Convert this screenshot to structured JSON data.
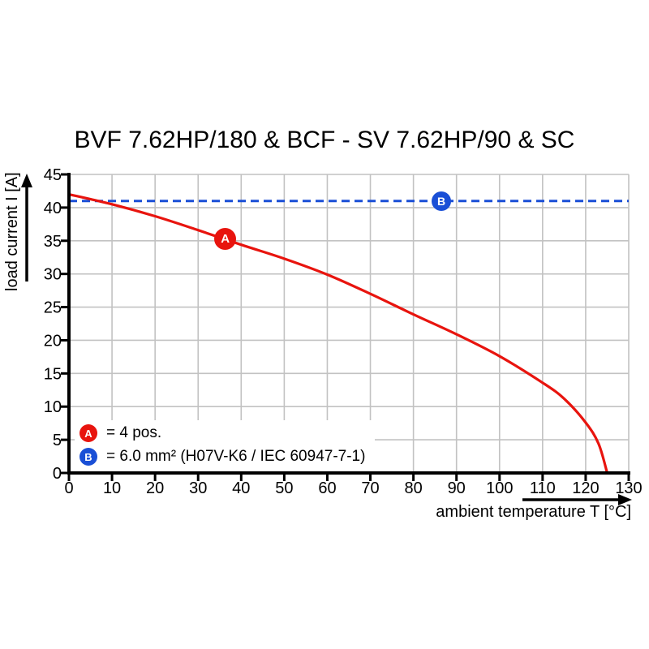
{
  "chart_data": {
    "type": "line",
    "title": "BVF 7.62HP/180 & BCF - SV 7.62HP/90 & SC",
    "xlabel": "ambient temperature T [°C]",
    "ylabel": "load current I [A]",
    "xlim": [
      0,
      130
    ],
    "ylim": [
      0,
      45
    ],
    "xticks": [
      0,
      10,
      20,
      30,
      40,
      50,
      60,
      70,
      80,
      90,
      100,
      110,
      120,
      130
    ],
    "yticks": [
      0,
      5,
      10,
      15,
      20,
      25,
      30,
      35,
      40,
      45
    ],
    "grid": true,
    "legend_position": "bottom-left-inside",
    "series": [
      {
        "name": "A",
        "label": "= 4 pos.",
        "color": "#e8140e",
        "style": "solid",
        "marker": {
          "letter": "A",
          "x": 36.3,
          "y": 35.3
        },
        "points": [
          [
            0,
            42
          ],
          [
            10,
            40.5
          ],
          [
            20,
            38.7
          ],
          [
            30,
            36.6
          ],
          [
            40,
            34.4
          ],
          [
            50,
            32.3
          ],
          [
            60,
            29.9
          ],
          [
            70,
            27
          ],
          [
            80,
            23.9
          ],
          [
            90,
            20.9
          ],
          [
            100,
            17.6
          ],
          [
            110,
            13.6
          ],
          [
            115,
            11.2
          ],
          [
            120,
            7.6
          ],
          [
            123,
            4.4
          ],
          [
            125,
            0
          ]
        ]
      },
      {
        "name": "B",
        "label": "= 6.0 mm² (H07V-K6 / IEC 60947-7-1)",
        "color": "#1a4fd6",
        "style": "dashed",
        "marker": {
          "letter": "B",
          "x": 86.5,
          "y": 41
        },
        "points": [
          [
            0,
            41
          ],
          [
            130,
            41
          ]
        ]
      }
    ]
  },
  "colors": {
    "grid": "#c2c2c2",
    "axis": "#000000",
    "text": "#000000",
    "background": "#ffffff"
  }
}
